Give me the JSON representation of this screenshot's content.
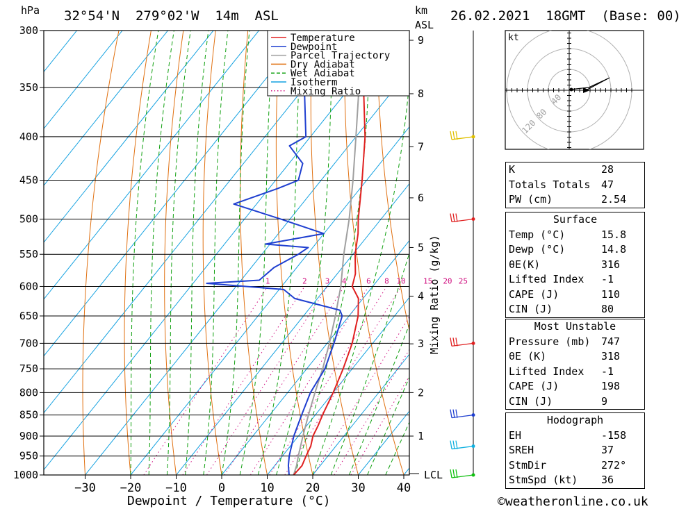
{
  "header": {
    "unit_left": "hPa",
    "location": "32°54'N  279°02'W  14m  ASL",
    "unit_right_top": "km",
    "unit_right_bottom": "ASL",
    "datetime": "26.02.2021  18GMT  (Base: 00)"
  },
  "footer": {
    "xlabel": "Dewpoint / Temperature (°C)",
    "copyright": "©weatheronline.co.uk",
    "ylabel_right": "Mixing Ratio (g/kg)",
    "lcl_label": "LCL"
  },
  "legend": {
    "items": [
      {
        "label": "Temperature",
        "color": "#e02020",
        "style": "solid"
      },
      {
        "label": "Dewpoint",
        "color": "#1f3fd0",
        "style": "solid"
      },
      {
        "label": "Parcel Trajectory",
        "color": "#a0a0a0",
        "style": "solid"
      },
      {
        "label": "Dry Adiabat",
        "color": "#e07010",
        "style": "solid"
      },
      {
        "label": "Wet Adiabat",
        "color": "#10a010",
        "style": "dashed"
      },
      {
        "label": "Isotherm",
        "color": "#10a0e0",
        "style": "solid"
      },
      {
        "label": "Mixing Ratio",
        "color": "#d01080",
        "style": "dotted"
      }
    ]
  },
  "hodograph": {
    "unit": "kt",
    "ring_labels": [
      "40",
      "80",
      "120"
    ]
  },
  "indices": {
    "top": [
      {
        "label": "K",
        "value": "28"
      },
      {
        "label": "Totals Totals",
        "value": "47"
      },
      {
        "label": "PW (cm)",
        "value": "2.54"
      }
    ],
    "surface": {
      "title": "Surface",
      "rows": [
        {
          "label": "Temp (°C)",
          "value": "15.8"
        },
        {
          "label": "Dewp (°C)",
          "value": "14.8"
        },
        {
          "label": "θE(K)",
          "value": "316"
        },
        {
          "label": "Lifted Index",
          "value": "-1"
        },
        {
          "label": "CAPE (J)",
          "value": "110"
        },
        {
          "label": "CIN (J)",
          "value": "80"
        }
      ]
    },
    "most_unstable": {
      "title": "Most Unstable",
      "rows": [
        {
          "label": "Pressure (mb)",
          "value": "747"
        },
        {
          "label": "θE (K)",
          "value": "318"
        },
        {
          "label": "Lifted Index",
          "value": "-1"
        },
        {
          "label": "CAPE (J)",
          "value": "198"
        },
        {
          "label": "CIN (J)",
          "value": "9"
        }
      ]
    },
    "hodograph": {
      "title": "Hodograph",
      "rows": [
        {
          "label": "EH",
          "value": "-158"
        },
        {
          "label": "SREH",
          "value": "37"
        },
        {
          "label": "StmDir",
          "value": "272°"
        },
        {
          "label": "StmSpd (kt)",
          "value": "36"
        }
      ]
    }
  },
  "chart_data": {
    "type": "line",
    "title": "",
    "xlabel": "Dewpoint / Temperature (°C)",
    "ylabel": "hPa",
    "xlim": [
      -40,
      40
    ],
    "ylim": [
      1000,
      300
    ],
    "x_ticks": [
      -30,
      -20,
      -10,
      0,
      10,
      20,
      30,
      40
    ],
    "pressure_ticks": [
      300,
      350,
      400,
      450,
      500,
      550,
      600,
      650,
      700,
      750,
      800,
      850,
      900,
      950,
      1000
    ],
    "km_ticks": [
      {
        "km": "1",
        "p": 900
      },
      {
        "km": "2",
        "p": 800
      },
      {
        "km": "3",
        "p": 701
      },
      {
        "km": "4",
        "p": 616
      },
      {
        "km": "5",
        "p": 540
      },
      {
        "km": "6",
        "p": 472
      },
      {
        "km": "7",
        "p": 411
      },
      {
        "km": "8",
        "p": 356
      },
      {
        "km": "9",
        "p": 308
      }
    ],
    "mixing_ratio_labels": [
      "1",
      "2",
      "3",
      "4",
      "6",
      "8",
      "10",
      "15",
      "20",
      "25"
    ],
    "temperature": [
      {
        "p": 1000,
        "t": 15.8
      },
      {
        "p": 975,
        "t": 16.0
      },
      {
        "p": 950,
        "t": 15.2
      },
      {
        "p": 925,
        "t": 14.5
      },
      {
        "p": 900,
        "t": 13.2
      },
      {
        "p": 875,
        "t": 12.5
      },
      {
        "p": 850,
        "t": 11.6
      },
      {
        "p": 800,
        "t": 10.0
      },
      {
        "p": 750,
        "t": 8.0
      },
      {
        "p": 700,
        "t": 5.5
      },
      {
        "p": 650,
        "t": 2.0
      },
      {
        "p": 620,
        "t": -1.0
      },
      {
        "p": 600,
        "t": -4.5
      },
      {
        "p": 580,
        "t": -6.0
      },
      {
        "p": 550,
        "t": -9.5
      },
      {
        "p": 520,
        "t": -12.5
      },
      {
        "p": 500,
        "t": -15.0
      },
      {
        "p": 450,
        "t": -21.0
      },
      {
        "p": 400,
        "t": -28.0
      },
      {
        "p": 350,
        "t": -37.0
      },
      {
        "p": 320,
        "t": -43.0
      },
      {
        "p": 300,
        "t": -46.0
      }
    ],
    "dewpoint": [
      {
        "p": 1000,
        "t": 14.8
      },
      {
        "p": 975,
        "t": 13.0
      },
      {
        "p": 950,
        "t": 11.5
      },
      {
        "p": 900,
        "t": 9.0
      },
      {
        "p": 850,
        "t": 7.0
      },
      {
        "p": 800,
        "t": 5.0
      },
      {
        "p": 750,
        "t": 4.0
      },
      {
        "p": 700,
        "t": 1.5
      },
      {
        "p": 650,
        "t": -1.5
      },
      {
        "p": 640,
        "t": -3.0
      },
      {
        "p": 620,
        "t": -15.0
      },
      {
        "p": 605,
        "t": -19.0
      },
      {
        "p": 595,
        "t": -37.0
      },
      {
        "p": 590,
        "t": -26.0
      },
      {
        "p": 570,
        "t": -25.0
      },
      {
        "p": 550,
        "t": -22.0
      },
      {
        "p": 540,
        "t": -21.0
      },
      {
        "p": 535,
        "t": -31.0
      },
      {
        "p": 520,
        "t": -20.0
      },
      {
        "p": 500,
        "t": -32.0
      },
      {
        "p": 480,
        "t": -45.0
      },
      {
        "p": 460,
        "t": -38.0
      },
      {
        "p": 450,
        "t": -35.0
      },
      {
        "p": 430,
        "t": -37.0
      },
      {
        "p": 410,
        "t": -43.0
      },
      {
        "p": 400,
        "t": -41.0
      },
      {
        "p": 350,
        "t": -50.0
      },
      {
        "p": 340,
        "t": -44.0
      },
      {
        "p": 330,
        "t": -33.0
      },
      {
        "p": 320,
        "t": -38.0
      },
      {
        "p": 310,
        "t": -49.0
      },
      {
        "p": 300,
        "t": -55.0
      }
    ],
    "parcel": [
      {
        "p": 1000,
        "t": 15.8
      },
      {
        "p": 975,
        "t": 14.8
      },
      {
        "p": 950,
        "t": 13.5
      },
      {
        "p": 900,
        "t": 11.0
      },
      {
        "p": 850,
        "t": 8.5
      },
      {
        "p": 800,
        "t": 6.0
      },
      {
        "p": 750,
        "t": 3.5
      },
      {
        "p": 700,
        "t": 0.5
      },
      {
        "p": 650,
        "t": -3.0
      },
      {
        "p": 600,
        "t": -7.0
      },
      {
        "p": 550,
        "t": -12.0
      },
      {
        "p": 500,
        "t": -17.0
      },
      {
        "p": 450,
        "t": -23.0
      },
      {
        "p": 400,
        "t": -30.0
      },
      {
        "p": 350,
        "t": -38.0
      },
      {
        "p": 310,
        "t": -46.0
      }
    ],
    "wind_barbs": [
      {
        "p": 1000,
        "color": "#10c010"
      },
      {
        "p": 925,
        "color": "#10b0e0"
      },
      {
        "p": 850,
        "color": "#1f3fd0"
      },
      {
        "p": 700,
        "color": "#e02020"
      },
      {
        "p": 500,
        "color": "#e02020"
      },
      {
        "p": 400,
        "color": "#e0c000"
      }
    ]
  }
}
